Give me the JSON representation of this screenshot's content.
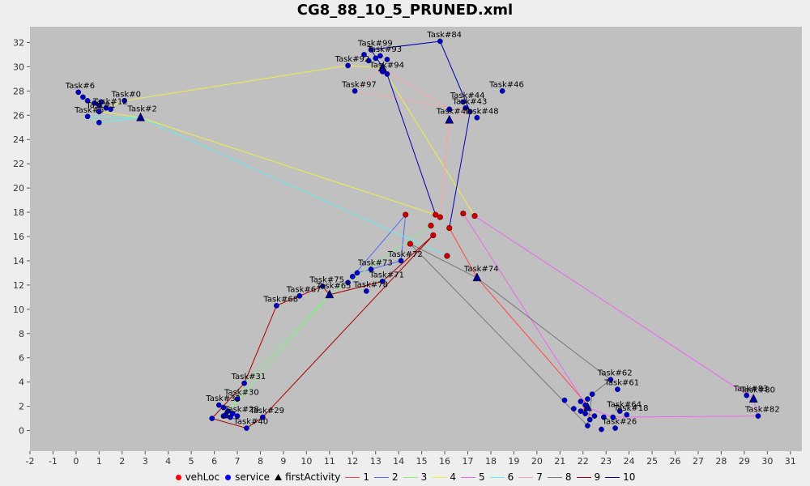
{
  "chart_data": {
    "type": "scatter",
    "title": "CG8_88_10_5_PRUNED.xml",
    "xlabel": "",
    "ylabel": "",
    "xlim": [
      -2,
      31.5
    ],
    "ylim": [
      -1.7,
      33.3
    ],
    "xticks": [
      -2,
      -1,
      0,
      1,
      2,
      3,
      4,
      5,
      6,
      7,
      8,
      9,
      10,
      11,
      12,
      13,
      14,
      15,
      16,
      17,
      18,
      19,
      20,
      21,
      22,
      23,
      24,
      25,
      26,
      27,
      28,
      29,
      30,
      31
    ],
    "yticks": [
      0,
      2,
      4,
      6,
      8,
      10,
      12,
      14,
      16,
      18,
      20,
      22,
      24,
      26,
      28,
      30,
      32
    ],
    "colors": {
      "plot_bg": "#c0c0c0",
      "vehLoc": "#cc0000",
      "service": "#0000cc",
      "firstActivity": "#000099"
    },
    "legend": {
      "markers": [
        {
          "name": "vehLoc",
          "shape": "circle",
          "color": "#ff0000"
        },
        {
          "name": "service",
          "shape": "circle",
          "color": "#0000ff"
        },
        {
          "name": "firstActivity",
          "shape": "triangle",
          "color": "#000000"
        }
      ],
      "routes": [
        {
          "name": "1",
          "color": "#ff4444"
        },
        {
          "name": "2",
          "color": "#5566ff"
        },
        {
          "name": "3",
          "color": "#88ee88"
        },
        {
          "name": "4",
          "color": "#eeee44"
        },
        {
          "name": "5",
          "color": "#ee66ee"
        },
        {
          "name": "6",
          "color": "#66eeee"
        },
        {
          "name": "7",
          "color": "#eeaaaa"
        },
        {
          "name": "8",
          "color": "#777777"
        },
        {
          "name": "9",
          "color": "#aa0000"
        },
        {
          "name": "10",
          "color": "#0000aa"
        }
      ]
    },
    "vehLoc": [
      [
        14.3,
        17.8
      ],
      [
        15.6,
        17.8
      ],
      [
        15.8,
        17.6
      ],
      [
        16.8,
        17.9
      ],
      [
        17.3,
        17.7
      ],
      [
        15.4,
        16.9
      ],
      [
        16.2,
        16.7
      ],
      [
        15.5,
        16.1
      ],
      [
        14.5,
        15.4
      ],
      [
        16.1,
        14.4
      ]
    ],
    "services": [
      {
        "label": "Task#0",
        "x": 2.1,
        "y": 27.2
      },
      {
        "label": "Task#6",
        "x": 0.1,
        "y": 27.9
      },
      {
        "label": "",
        "x": 0.3,
        "y": 27.5
      },
      {
        "label": "",
        "x": 0.5,
        "y": 27.2
      },
      {
        "label": "",
        "x": 0.8,
        "y": 27.0
      },
      {
        "label": "",
        "x": 1.1,
        "y": 27.1
      },
      {
        "label": "Task#12",
        "x": 1.3,
        "y": 26.6
      },
      {
        "label": "",
        "x": 1.0,
        "y": 26.8
      },
      {
        "label": "",
        "x": 1.5,
        "y": 26.5
      },
      {
        "label": "Task#1",
        "x": 1.0,
        "y": 26.3
      },
      {
        "label": "Task#5",
        "x": 0.5,
        "y": 25.9
      },
      {
        "label": "",
        "x": 1.0,
        "y": 25.4
      },
      {
        "label": "Task#99",
        "x": 12.8,
        "y": 31.4
      },
      {
        "label": "",
        "x": 12.5,
        "y": 31.0
      },
      {
        "label": "Task#93",
        "x": 13.2,
        "y": 30.9
      },
      {
        "label": "",
        "x": 13.5,
        "y": 30.6
      },
      {
        "label": "",
        "x": 12.7,
        "y": 30.5
      },
      {
        "label": "",
        "x": 13.0,
        "y": 30.7
      },
      {
        "label": "Task#92",
        "x": 11.8,
        "y": 30.1
      },
      {
        "label": "Task#94",
        "x": 13.3,
        "y": 29.6
      },
      {
        "label": "",
        "x": 13.5,
        "y": 29.4
      },
      {
        "label": "Task#84",
        "x": 15.8,
        "y": 32.1
      },
      {
        "label": "Task#97",
        "x": 12.1,
        "y": 28.0
      },
      {
        "label": "Task#46",
        "x": 18.5,
        "y": 28.0
      },
      {
        "label": "Task#44",
        "x": 16.8,
        "y": 27.1
      },
      {
        "label": "",
        "x": 16.2,
        "y": 26.5
      },
      {
        "label": "Task#43",
        "x": 16.9,
        "y": 26.6
      },
      {
        "label": "",
        "x": 17.1,
        "y": 26.3
      },
      {
        "label": "Task#48",
        "x": 17.4,
        "y": 25.8
      },
      {
        "label": "Task#72",
        "x": 14.1,
        "y": 14.0
      },
      {
        "label": "Task#73",
        "x": 12.8,
        "y": 13.3
      },
      {
        "label": "",
        "x": 12.2,
        "y": 13.0
      },
      {
        "label": "",
        "x": 12.0,
        "y": 12.7
      },
      {
        "label": "Task#71",
        "x": 13.3,
        "y": 12.3
      },
      {
        "label": "",
        "x": 11.8,
        "y": 12.2
      },
      {
        "label": "Task#78",
        "x": 12.6,
        "y": 11.5
      },
      {
        "label": "Task#75",
        "x": 10.7,
        "y": 11.9
      },
      {
        "label": "Task#67",
        "x": 9.7,
        "y": 11.1
      },
      {
        "label": "Task#68",
        "x": 8.7,
        "y": 10.3
      },
      {
        "label": "Task#31",
        "x": 7.3,
        "y": 3.9
      },
      {
        "label": "Task#30",
        "x": 7.0,
        "y": 2.6
      },
      {
        "label": "Task#32",
        "x": 6.2,
        "y": 2.1
      },
      {
        "label": "",
        "x": 6.4,
        "y": 1.9
      },
      {
        "label": "",
        "x": 6.6,
        "y": 1.6
      },
      {
        "label": "",
        "x": 6.8,
        "y": 1.4
      },
      {
        "label": "Task#28",
        "x": 7.0,
        "y": 1.2
      },
      {
        "label": "",
        "x": 6.7,
        "y": 1.1
      },
      {
        "label": "",
        "x": 6.4,
        "y": 1.2
      },
      {
        "label": "",
        "x": 5.9,
        "y": 1.0
      },
      {
        "label": "Task#29",
        "x": 8.1,
        "y": 1.1
      },
      {
        "label": "Task#40",
        "x": 7.4,
        "y": 0.2
      },
      {
        "label": "Task#62",
        "x": 23.2,
        "y": 4.2
      },
      {
        "label": "Task#61",
        "x": 23.5,
        "y": 3.4
      },
      {
        "label": "",
        "x": 22.4,
        "y": 3.0
      },
      {
        "label": "",
        "x": 22.2,
        "y": 2.6
      },
      {
        "label": "",
        "x": 21.9,
        "y": 2.4
      },
      {
        "label": "",
        "x": 22.1,
        "y": 2.1
      },
      {
        "label": "",
        "x": 21.6,
        "y": 1.8
      },
      {
        "label": "",
        "x": 21.9,
        "y": 1.6
      },
      {
        "label": "Task#64",
        "x": 23.6,
        "y": 1.6
      },
      {
        "label": "Task#18",
        "x": 23.9,
        "y": 1.3
      },
      {
        "label": "",
        "x": 22.1,
        "y": 1.4
      },
      {
        "label": "",
        "x": 22.5,
        "y": 1.2
      },
      {
        "label": "",
        "x": 22.9,
        "y": 1.1
      },
      {
        "label": "",
        "x": 23.3,
        "y": 1.1
      },
      {
        "label": "",
        "x": 22.3,
        "y": 0.9
      },
      {
        "label": "Task#26",
        "x": 23.4,
        "y": 0.2
      },
      {
        "label": "",
        "x": 22.8,
        "y": 0.1
      },
      {
        "label": "",
        "x": 22.2,
        "y": 0.4
      },
      {
        "label": "",
        "x": 21.2,
        "y": 2.5
      },
      {
        "label": "Task#83",
        "x": 29.1,
        "y": 2.9
      },
      {
        "label": "Task#82",
        "x": 29.6,
        "y": 1.2
      }
    ],
    "firstActivity": [
      {
        "label": "Task#2",
        "x": 2.8,
        "y": 25.8
      },
      {
        "label": "",
        "x": 13.3,
        "y": 29.9
      },
      {
        "label": "Task#41",
        "x": 16.2,
        "y": 25.6
      },
      {
        "label": "Task#65",
        "x": 11.0,
        "y": 11.2
      },
      {
        "label": "Task#74",
        "x": 17.4,
        "y": 12.6
      },
      {
        "label": "",
        "x": 6.5,
        "y": 1.3
      },
      {
        "label": "",
        "x": 22.2,
        "y": 1.9
      },
      {
        "label": "Task#80",
        "x": 29.4,
        "y": 2.6
      }
    ],
    "routes": [
      {
        "name": "1",
        "points": [
          [
            16.2,
            16.7
          ],
          [
            17.4,
            12.6
          ],
          [
            22.2,
            2.1
          ],
          [
            21.9,
            1.6
          ],
          [
            22.5,
            1.2
          ]
        ]
      },
      {
        "name": "2",
        "points": [
          [
            14.3,
            17.8
          ],
          [
            14.1,
            14.0
          ],
          [
            12.8,
            13.3
          ],
          [
            12.2,
            13.0
          ],
          [
            12.0,
            12.7
          ],
          [
            14.3,
            17.8
          ]
        ]
      },
      {
        "name": "3",
        "points": [
          [
            15.4,
            16.9
          ],
          [
            11.0,
            11.2
          ],
          [
            7.3,
            3.9
          ],
          [
            7.0,
            2.6
          ],
          [
            6.5,
            1.3
          ],
          [
            11.0,
            11.2
          ],
          [
            15.4,
            16.9
          ]
        ]
      },
      {
        "name": "4",
        "points": [
          [
            15.6,
            17.8
          ],
          [
            2.8,
            25.8
          ],
          [
            1.0,
            26.3
          ],
          [
            2.1,
            27.2
          ],
          [
            11.8,
            30.1
          ],
          [
            13.3,
            29.9
          ],
          [
            17.3,
            17.7
          ]
        ]
      },
      {
        "name": "5",
        "points": [
          [
            17.3,
            17.7
          ],
          [
            29.4,
            2.6
          ],
          [
            29.6,
            1.2
          ],
          [
            23.3,
            1.1
          ],
          [
            22.2,
            1.9
          ],
          [
            16.8,
            17.9
          ]
        ]
      },
      {
        "name": "6",
        "points": [
          [
            16.1,
            14.4
          ],
          [
            2.8,
            25.8
          ],
          [
            0.5,
            25.9
          ],
          [
            1.0,
            25.4
          ],
          [
            2.8,
            25.8
          ],
          [
            16.1,
            14.4
          ]
        ]
      },
      {
        "name": "7",
        "points": [
          [
            15.8,
            17.6
          ],
          [
            16.2,
            25.6
          ],
          [
            17.1,
            26.3
          ],
          [
            12.1,
            28.0
          ],
          [
            13.3,
            29.9
          ],
          [
            16.2,
            26.5
          ],
          [
            15.8,
            17.6
          ]
        ]
      },
      {
        "name": "8",
        "points": [
          [
            14.5,
            15.4
          ],
          [
            17.4,
            12.6
          ],
          [
            23.2,
            4.2
          ],
          [
            22.4,
            3.0
          ],
          [
            22.2,
            0.4
          ],
          [
            14.5,
            15.4
          ]
        ]
      },
      {
        "name": "9",
        "points": [
          [
            15.5,
            16.1
          ],
          [
            8.1,
            1.1
          ],
          [
            7.4,
            0.2
          ],
          [
            5.9,
            1.0
          ],
          [
            7.3,
            3.9
          ],
          [
            8.7,
            10.3
          ],
          [
            9.7,
            11.1
          ],
          [
            10.7,
            11.9
          ],
          [
            11.0,
            11.2
          ],
          [
            13.3,
            12.3
          ],
          [
            15.5,
            16.1
          ]
        ]
      },
      {
        "name": "10",
        "points": [
          [
            15.6,
            17.8
          ],
          [
            13.5,
            29.4
          ],
          [
            12.8,
            31.4
          ],
          [
            15.8,
            32.1
          ],
          [
            17.1,
            26.3
          ],
          [
            16.2,
            16.7
          ]
        ]
      }
    ]
  }
}
